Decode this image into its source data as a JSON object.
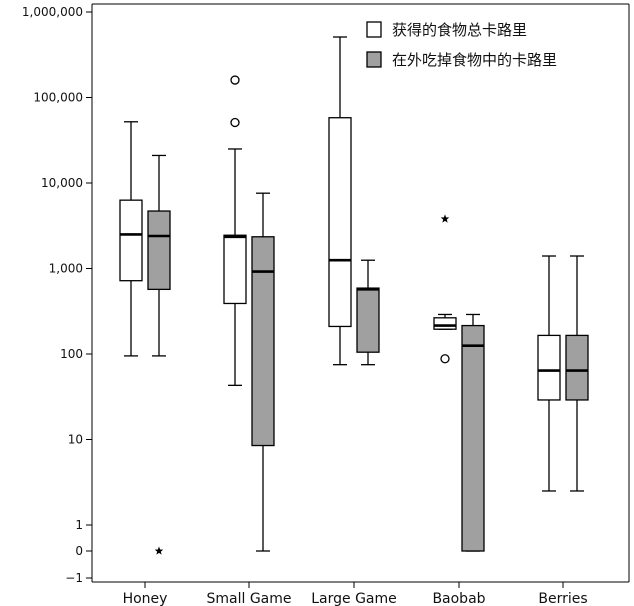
{
  "chart_data": {
    "type": "boxplot",
    "title": "",
    "xlabel": "",
    "ylabel": "",
    "yscale": "symlog",
    "ylim": [
      -1,
      1000000
    ],
    "yticks": [
      {
        "value": -1,
        "label": "−1"
      },
      {
        "value": 0,
        "label": "0"
      },
      {
        "value": 1,
        "label": "1"
      },
      {
        "value": 10,
        "label": "10"
      },
      {
        "value": 100,
        "label": "100"
      },
      {
        "value": 1000,
        "label": "1,000"
      },
      {
        "value": 10000,
        "label": "10,000"
      },
      {
        "value": 100000,
        "label": "100,000"
      },
      {
        "value": 1000000,
        "label": "1,000,000"
      }
    ],
    "grid": false,
    "legend_position": "top-right",
    "categories": [
      "Honey",
      "Small Game",
      "Large Game",
      "Baobab",
      "Berries"
    ],
    "series": [
      {
        "name": "获得的食物总卡路里",
        "color": "#ffffff",
        "boxes": [
          {
            "min": 95,
            "q1": 720,
            "median": 2500,
            "q3": 6300,
            "max": 52000,
            "outliers": [],
            "extremes": []
          },
          {
            "min": 43,
            "q1": 390,
            "median": 2350,
            "q3": 2450,
            "max": 25000,
            "outliers": [
              51000,
              160000
            ],
            "extremes": []
          },
          {
            "min": 75,
            "q1": 210,
            "median": 1250,
            "q3": 58000,
            "max": 510000,
            "outliers": [],
            "extremes": []
          },
          {
            "min": 195,
            "q1": 195,
            "median": 215,
            "q3": 265,
            "max": 290,
            "outliers": [
              88
            ],
            "extremes": [
              3800
            ]
          },
          {
            "min": 2.5,
            "q1": 29,
            "median": 64,
            "q3": 165,
            "max": 1400,
            "outliers": [],
            "extremes": []
          }
        ]
      },
      {
        "name": "在外吃掉食物中的卡路里",
        "color": "#a0a0a0",
        "boxes": [
          {
            "min": 95,
            "q1": 570,
            "median": 2400,
            "q3": 4700,
            "max": 21000,
            "outliers": [],
            "extremes": [
              0
            ]
          },
          {
            "min": 0,
            "q1": 8.5,
            "median": 920,
            "q3": 2350,
            "max": 7600,
            "outliers": [],
            "extremes": []
          },
          {
            "min": 75,
            "q1": 105,
            "median": 570,
            "q3": 590,
            "max": 1250,
            "outliers": [],
            "extremes": []
          },
          {
            "min": 0,
            "q1": 0,
            "median": 125,
            "q3": 215,
            "max": 290,
            "outliers": [],
            "extremes": []
          },
          {
            "min": 2.5,
            "q1": 29,
            "median": 64,
            "q3": 165,
            "max": 1400,
            "outliers": [],
            "extremes": []
          }
        ]
      }
    ]
  }
}
